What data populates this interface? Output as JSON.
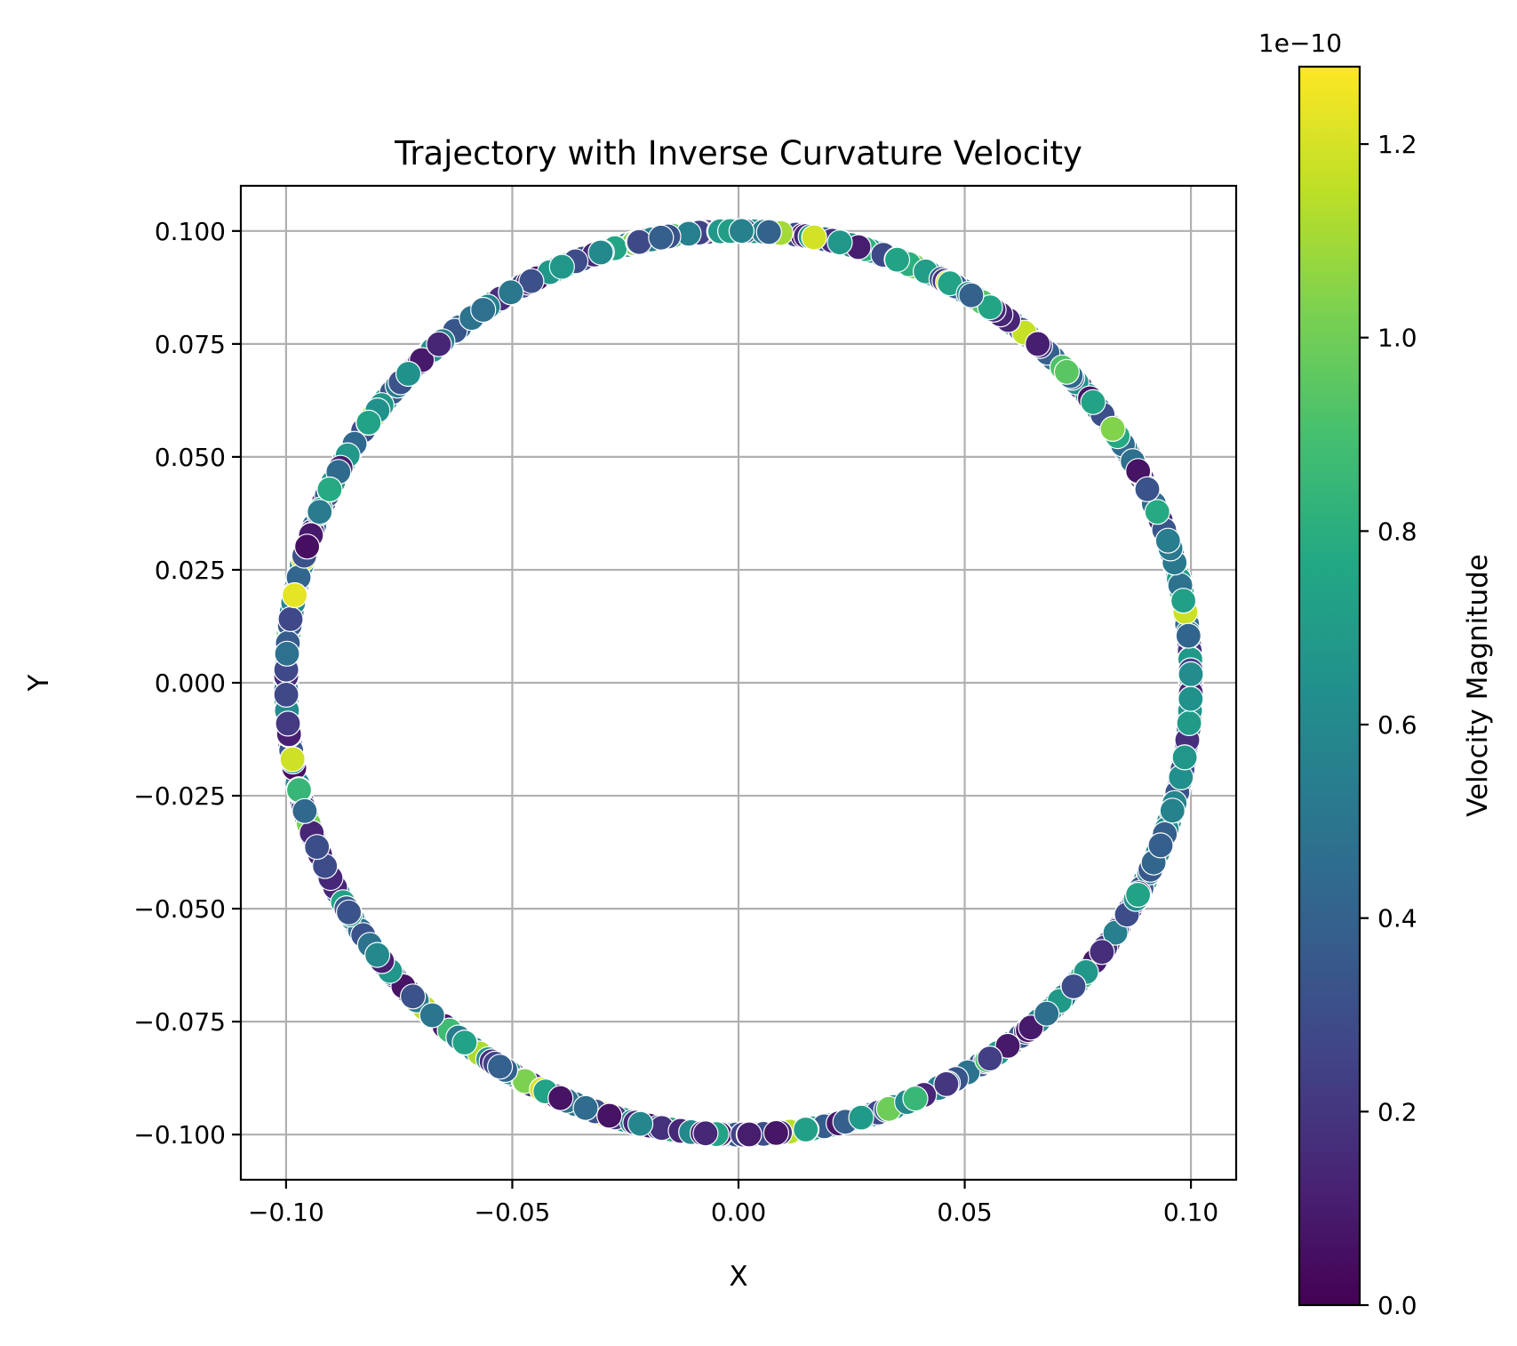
{
  "chart_data": {
    "type": "scatter",
    "title": "Trajectory with Inverse Curvature Velocity",
    "xlabel": "X",
    "ylabel": "Y",
    "xlim": [
      -0.11,
      0.11
    ],
    "ylim": [
      -0.11,
      0.11
    ],
    "x_ticks": [
      -0.1,
      -0.05,
      0.0,
      0.05,
      0.1
    ],
    "x_tick_labels": [
      "−0.10",
      "−0.05",
      "0.00",
      "0.05",
      "0.10"
    ],
    "y_ticks": [
      0.1,
      0.075,
      0.05,
      0.025,
      0.0,
      -0.025,
      -0.05,
      -0.075,
      -0.1
    ],
    "y_tick_labels": [
      "0.100",
      "0.075",
      "0.050",
      "0.025",
      "0.000",
      "−0.025",
      "−0.050",
      "−0.075",
      "−0.100"
    ],
    "grid": true,
    "trajectory": {
      "shape": "circle",
      "center": [
        0.0,
        0.0
      ],
      "radius": 0.1,
      "point_count": 1200,
      "marker_edge_color": "#ffffff"
    },
    "colorbar": {
      "label": "Velocity Magnitude",
      "offset_text": "1e−10",
      "colormap": "viridis",
      "range": [
        0.0,
        1.28
      ],
      "ticks": [
        0.0,
        0.2,
        0.4,
        0.6,
        0.8,
        1.0,
        1.2
      ],
      "tick_labels": [
        "0.0",
        "0.2",
        "0.4",
        "0.6",
        "0.8",
        "1.0",
        "1.2"
      ]
    }
  }
}
